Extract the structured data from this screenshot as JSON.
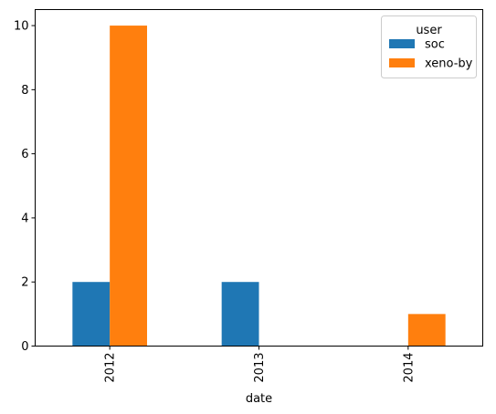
{
  "chart_data": {
    "type": "bar",
    "categories": [
      "2012",
      "2013",
      "2014"
    ],
    "series": [
      {
        "name": "soc",
        "values": [
          2,
          2,
          0
        ]
      },
      {
        "name": "xeno-by",
        "values": [
          10,
          0,
          1
        ]
      }
    ],
    "xlabel": "date",
    "ylabel": "",
    "ylim": [
      0,
      10.5
    ],
    "yticks": [
      0,
      2,
      4,
      6,
      8,
      10
    ],
    "legend_title": "user",
    "legend_position": "top-right",
    "grid": false,
    "colors": [
      "#1f77b4",
      "#ff7f0e"
    ]
  }
}
